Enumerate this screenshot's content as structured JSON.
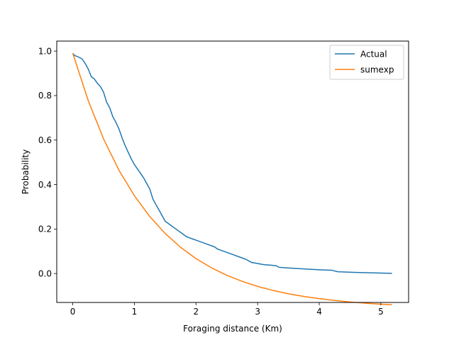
{
  "chart_data": {
    "type": "line",
    "title": "",
    "xlabel": "Foraging distance (Km)",
    "ylabel": "Probability",
    "xlim": [
      -0.26,
      5.45
    ],
    "ylim": [
      -0.13,
      1.045
    ],
    "xticks": [
      0,
      1,
      2,
      3,
      4,
      5
    ],
    "xtick_labels": [
      "0",
      "1",
      "2",
      "3",
      "4",
      "5"
    ],
    "yticks": [
      0.0,
      0.2,
      0.4,
      0.6,
      0.8,
      1.0
    ],
    "ytick_labels": [
      "0.0",
      "0.2",
      "0.4",
      "0.6",
      "0.8",
      "1.0"
    ],
    "grid": false,
    "legend_position": "top-right",
    "series": [
      {
        "name": "Actual",
        "color": "#1f77b4",
        "x": [
          0.0,
          0.03,
          0.08,
          0.15,
          0.2,
          0.25,
          0.3,
          0.35,
          0.4,
          0.45,
          0.5,
          0.55,
          0.6,
          0.65,
          0.7,
          0.75,
          0.8,
          0.85,
          0.9,
          0.95,
          1.0,
          1.05,
          1.1,
          1.15,
          1.2,
          1.25,
          1.3,
          1.35,
          1.4,
          1.45,
          1.5,
          1.55,
          1.6,
          1.65,
          1.7,
          1.75,
          1.8,
          1.85,
          1.9,
          1.95,
          2.0,
          2.1,
          2.2,
          2.3,
          2.35,
          2.4,
          2.5,
          2.6,
          2.7,
          2.8,
          2.9,
          3.0,
          3.1,
          3.2,
          3.3,
          3.35,
          3.5,
          3.8,
          4.0,
          4.2,
          4.3,
          4.6,
          5.0,
          5.18
        ],
        "y": [
          0.99,
          0.98,
          0.975,
          0.965,
          0.945,
          0.92,
          0.885,
          0.875,
          0.855,
          0.84,
          0.815,
          0.77,
          0.745,
          0.705,
          0.68,
          0.65,
          0.61,
          0.575,
          0.545,
          0.515,
          0.49,
          0.47,
          0.45,
          0.43,
          0.405,
          0.38,
          0.335,
          0.31,
          0.285,
          0.26,
          0.235,
          0.225,
          0.215,
          0.205,
          0.195,
          0.185,
          0.175,
          0.165,
          0.16,
          0.155,
          0.15,
          0.14,
          0.13,
          0.12,
          0.11,
          0.105,
          0.095,
          0.085,
          0.075,
          0.065,
          0.05,
          0.045,
          0.04,
          0.038,
          0.035,
          0.028,
          0.025,
          0.02,
          0.017,
          0.015,
          0.008,
          0.005,
          0.002,
          0.001
        ]
      },
      {
        "name": "sumexp",
        "color": "#ff7f0e",
        "x": [
          0.0,
          0.25,
          0.5,
          0.75,
          1.0,
          1.25,
          1.5,
          1.75,
          2.0,
          2.25,
          2.5,
          2.75,
          3.0,
          3.25,
          3.5,
          3.75,
          4.0,
          4.25,
          4.5,
          4.75,
          5.0,
          5.18
        ],
        "y": [
          0.99,
          0.778,
          0.605,
          0.464,
          0.35,
          0.256,
          0.18,
          0.118,
          0.067,
          0.026,
          -0.008,
          -0.035,
          -0.058,
          -0.076,
          -0.091,
          -0.103,
          -0.113,
          -0.121,
          -0.128,
          -0.133,
          -0.138,
          -0.14
        ]
      }
    ]
  }
}
